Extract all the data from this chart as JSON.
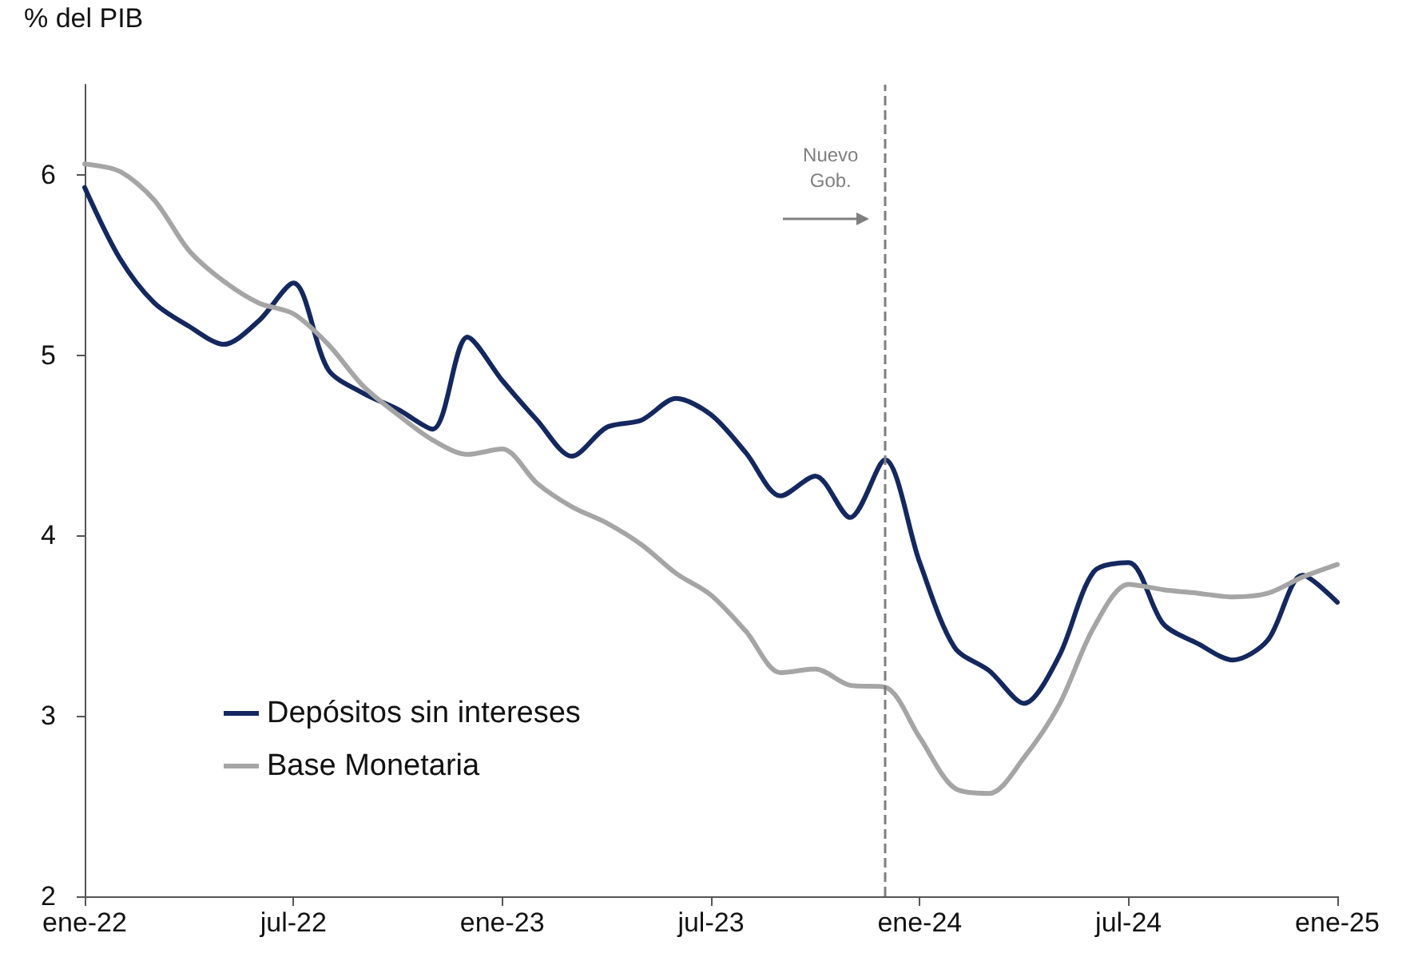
{
  "chart_data": {
    "type": "line",
    "ylabel": "% del PIB",
    "x": [
      "2022-01",
      "2022-02",
      "2022-03",
      "2022-04",
      "2022-05",
      "2022-06",
      "2022-07",
      "2022-08",
      "2022-09",
      "2022-10",
      "2022-11",
      "2022-12",
      "2023-01",
      "2023-02",
      "2023-03",
      "2023-04",
      "2023-05",
      "2023-06",
      "2023-07",
      "2023-08",
      "2023-09",
      "2023-10",
      "2023-11",
      "2023-12",
      "2024-01",
      "2024-02",
      "2024-03",
      "2024-04",
      "2024-05",
      "2024-06",
      "2024-07",
      "2024-08",
      "2024-09",
      "2024-10",
      "2024-11",
      "2024-12",
      "2025-01"
    ],
    "series": [
      {
        "name": "Depósitos sin intereses",
        "color": "#14285f",
        "values": [
          5.93,
          5.54,
          5.29,
          5.16,
          5.06,
          5.19,
          5.4,
          4.92,
          4.79,
          4.7,
          4.59,
          5.1,
          4.86,
          4.64,
          4.44,
          4.6,
          4.64,
          4.76,
          4.67,
          4.46,
          4.22,
          4.33,
          4.1,
          4.42,
          3.85,
          3.38,
          3.25,
          3.07,
          3.33,
          3.8,
          3.85,
          3.51,
          3.4,
          3.31,
          3.42,
          3.78,
          3.63
        ]
      },
      {
        "name": "Base Monetaria",
        "color": "#a5a5a5",
        "values": [
          6.06,
          6.02,
          5.86,
          5.58,
          5.41,
          5.29,
          5.23,
          5.06,
          4.83,
          4.67,
          4.53,
          4.45,
          4.48,
          4.29,
          4.16,
          4.07,
          3.95,
          3.79,
          3.67,
          3.47,
          3.24,
          3.26,
          3.17,
          3.16,
          2.88,
          2.6,
          2.57,
          2.77,
          3.06,
          3.49,
          3.73,
          3.7,
          3.68,
          3.66,
          3.68,
          3.77,
          3.84
        ]
      }
    ],
    "xlim": [
      "2022-01",
      "2025-01"
    ],
    "xticks": [
      {
        "value": "2022-01",
        "label": "ene-22"
      },
      {
        "value": "2022-07",
        "label": "jul-22"
      },
      {
        "value": "2023-01",
        "label": "ene-23"
      },
      {
        "value": "2023-07",
        "label": "jul-23"
      },
      {
        "value": "2024-01",
        "label": "ene-24"
      },
      {
        "value": "2024-07",
        "label": "jul-24"
      },
      {
        "value": "2025-01",
        "label": "ene-25"
      }
    ],
    "ylim": [
      2,
      6.5
    ],
    "yticks": [
      2,
      3,
      4,
      5,
      6
    ],
    "ref_lines": [
      {
        "axis": "x",
        "value": "2023-12",
        "label": "Nuevo\nGob.",
        "color": "#7f7f7f",
        "line_style": "dashed"
      }
    ],
    "grid": false,
    "legend": "bottom left",
    "marker": "none",
    "line_style": "solid"
  }
}
